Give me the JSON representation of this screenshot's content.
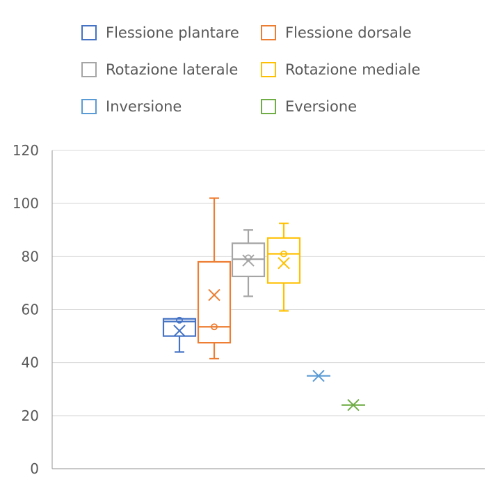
{
  "chart_data": {
    "type": "boxplot",
    "title": "",
    "xlabel": "",
    "ylabel": "",
    "ylim": [
      0,
      120
    ],
    "yticks": [
      0,
      20,
      40,
      60,
      80,
      100,
      120
    ],
    "grid": true,
    "legend_position": "top",
    "series": [
      {
        "name": "Flessione plantare",
        "color": "#4472C4",
        "min": 44,
        "q1": 50,
        "median": 55.5,
        "q3": 56.5,
        "max": 56.5,
        "mean": 52,
        "points": [
          56
        ]
      },
      {
        "name": "Flessione dorsale",
        "color": "#ED7D31",
        "min": 41.5,
        "q1": 47.5,
        "median": 53.5,
        "q3": 78,
        "max": 102,
        "mean": 65.5,
        "points": [
          53.5
        ]
      },
      {
        "name": "Rotazione laterale",
        "color": "#A5A5A5",
        "min": 65,
        "q1": 72.5,
        "median": 79,
        "q3": 85,
        "max": 90,
        "mean": 78.5,
        "points": [
          79.5
        ]
      },
      {
        "name": "Rotazione mediale",
        "color": "#FFC000",
        "min": 59.5,
        "q1": 70,
        "median": 81,
        "q3": 87,
        "max": 92.5,
        "mean": 77.5,
        "points": [
          81
        ]
      },
      {
        "name": "Inversione",
        "color": "#5B9BD5",
        "min": 35,
        "q1": 35,
        "median": 35,
        "q3": 35,
        "max": 35,
        "mean": 35,
        "points": []
      },
      {
        "name": "Eversione",
        "color": "#70AD47",
        "min": 24,
        "q1": 24,
        "median": 24,
        "q3": 24,
        "max": 24,
        "mean": 24,
        "points": []
      }
    ]
  },
  "colors": {
    "axis": "#A6A6A6",
    "grid": "#D9D9D9",
    "text": "#595959"
  }
}
